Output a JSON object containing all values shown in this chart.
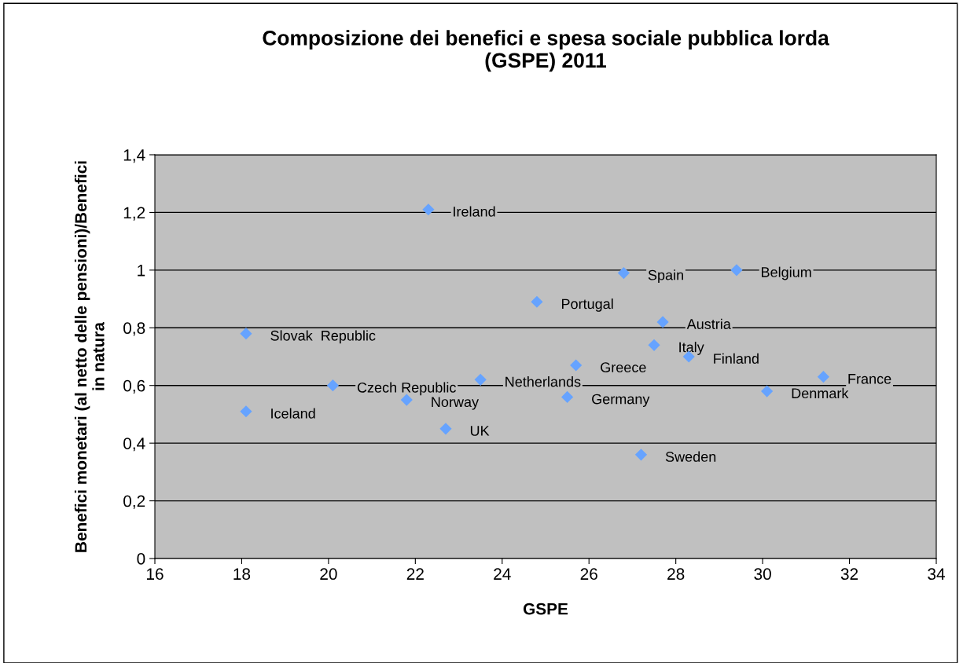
{
  "chart_data": {
    "type": "scatter",
    "title": "Composizione dei benefici e spesa sociale pubblica lorda\n(GSPE) 2011",
    "xlabel": "GSPE",
    "ylabel": "Benefici monetari (al netto delle pensioni)/Benefici\nin natura",
    "x": [
      22.3,
      26.8,
      29.4,
      24.8,
      27.7,
      18.1,
      27.5,
      28.3,
      25.7,
      31.4,
      23.5,
      20.1,
      30.1,
      25.5,
      21.8,
      18.1,
      22.7,
      27.2
    ],
    "values": [
      1.21,
      0.99,
      1.0,
      0.89,
      0.82,
      0.78,
      0.74,
      0.7,
      0.67,
      0.63,
      0.62,
      0.6,
      0.58,
      0.56,
      0.55,
      0.51,
      0.45,
      0.36
    ],
    "color": "#66a3ff",
    "marker": "diamond",
    "grid": "y",
    "legend": false,
    "xlim": [
      16,
      34
    ],
    "xticks": [
      16,
      18,
      20,
      22,
      24,
      26,
      28,
      30,
      32,
      34
    ],
    "ylim": [
      0,
      1.4
    ],
    "yticks": [
      {
        "value": 0,
        "label": "0"
      },
      {
        "value": 0.2,
        "label": "0,2"
      },
      {
        "value": 0.4,
        "label": "0,4"
      },
      {
        "value": 0.6,
        "label": "0,6"
      },
      {
        "value": 0.8,
        "label": "0,8"
      },
      {
        "value": 1,
        "label": "1"
      },
      {
        "value": 1.2,
        "label": "1,2"
      },
      {
        "value": 1.4,
        "label": "1,4"
      }
    ],
    "annotations": [
      {
        "text": "Ireland",
        "x": 22.3,
        "y": 1.21
      },
      {
        "text": "Spain",
        "x": 26.8,
        "y": 0.99
      },
      {
        "text": "Belgium",
        "x": 29.4,
        "y": 1.0
      },
      {
        "text": "Portugal",
        "x": 24.8,
        "y": 0.89
      },
      {
        "text": "Austria",
        "x": 27.7,
        "y": 0.82
      },
      {
        "text": "Slovak  Republic",
        "x": 18.1,
        "y": 0.78
      },
      {
        "text": "Italy",
        "x": 27.5,
        "y": 0.74
      },
      {
        "text": "Finland",
        "x": 28.3,
        "y": 0.7
      },
      {
        "text": "Greece",
        "x": 25.7,
        "y": 0.67
      },
      {
        "text": "France",
        "x": 31.4,
        "y": 0.63
      },
      {
        "text": "Netherlands",
        "x": 23.5,
        "y": 0.62
      },
      {
        "text": "Czech Republic",
        "x": 20.1,
        "y": 0.6
      },
      {
        "text": "Denmark",
        "x": 30.1,
        "y": 0.58
      },
      {
        "text": "Germany",
        "x": 25.5,
        "y": 0.56
      },
      {
        "text": "Norway",
        "x": 21.8,
        "y": 0.55
      },
      {
        "text": "Iceland",
        "x": 18.1,
        "y": 0.51
      },
      {
        "text": "UK",
        "x": 22.7,
        "y": 0.45
      },
      {
        "text": "Sweden",
        "x": 27.2,
        "y": 0.36
      }
    ]
  }
}
